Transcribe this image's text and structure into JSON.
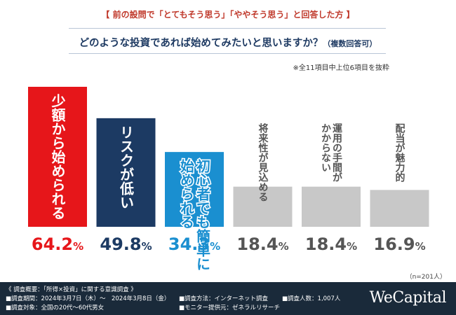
{
  "header_note": "【 前の設問で「とてもそう思う」「ややそう思う」と回答した方 】",
  "question": "どのような投資であれば始めてみたいと思いますか？",
  "question_sub": "（複数回答可）",
  "note": "※全11項目中上位6項目を抜粋",
  "n_note": "（n=201人）",
  "footer": {
    "line1": "《 調査概要：「所得×投資」に関する意識調査 》",
    "period": "■調査期間：2024年3月7日（木）～　2024年3月8日（金）",
    "target": "■調査対象：全国の20代～60代男女",
    "method": "■調査方法：インターネット調査",
    "monitor": "■モニター提供元：ゼネラルリサーチ",
    "count": "■調査人数：1,007人",
    "brand": "WeCapital"
  },
  "chart_data": {
    "type": "bar",
    "categories": [
      "少額から始められる",
      "リスクが低い",
      "初心者でも簡単に始められる",
      "将来性が見込める",
      "運用の手間がかからない",
      "配当が魅力的"
    ],
    "values": [
      64.2,
      49.8,
      34.3,
      18.4,
      18.4,
      16.9
    ],
    "value_labels": [
      "64.2%",
      "49.8%",
      "34.3%",
      "18.4%",
      "18.4%",
      "16.9%"
    ],
    "bar_colors": [
      "#e6161a",
      "#1c3a63",
      "#1a8fd0",
      "#c8c8c8",
      "#c8c8c8",
      "#c8c8c8"
    ],
    "label_colors": [
      "#e6161a",
      "#1c3a63",
      "#1a8fd0",
      "#555555",
      "#555555",
      "#555555"
    ],
    "bar_text_colors": [
      "#ffffff",
      "#ffffff",
      "#ffffff",
      "#555555",
      "#555555",
      "#555555"
    ],
    "label_columns": [
      [
        "少額から始められる"
      ],
      [
        "リスクが低い"
      ],
      [
        "初心者でも簡単に",
        "始められる"
      ],
      [
        "将来性が見込める"
      ],
      [
        "運用の手間が",
        "かからない"
      ],
      [
        "配当が魅力的"
      ]
    ],
    "ylim": [
      0,
      100
    ],
    "grid": false,
    "legend": "none"
  }
}
